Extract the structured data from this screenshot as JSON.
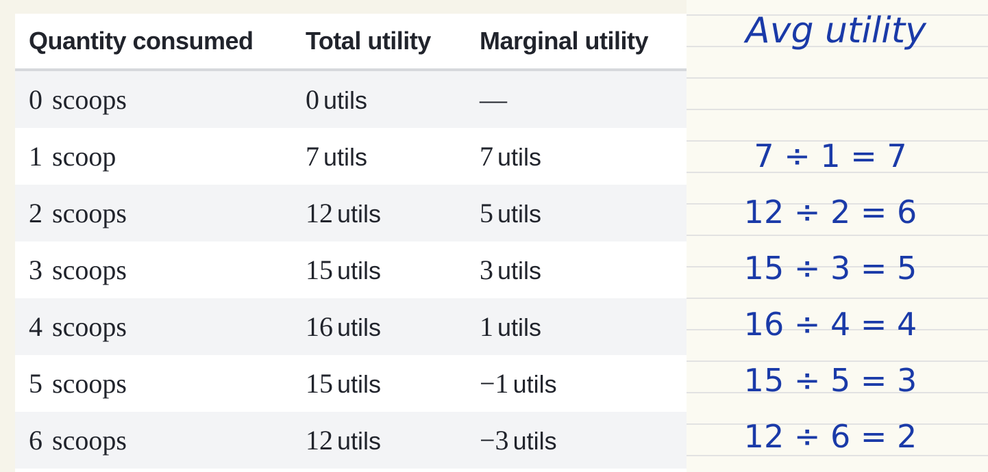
{
  "table": {
    "headers": [
      "Quantity consumed",
      "Total utility",
      "Marginal utility"
    ],
    "rows": [
      {
        "qty": "0",
        "qty_unit": "scoops",
        "total": "0",
        "total_unit": "utils",
        "marginal": "—",
        "marginal_unit": ""
      },
      {
        "qty": "1",
        "qty_unit": "scoop",
        "total": "7",
        "total_unit": "utils",
        "marginal": "7",
        "marginal_unit": "utils"
      },
      {
        "qty": "2",
        "qty_unit": "scoops",
        "total": "12",
        "total_unit": "utils",
        "marginal": "5",
        "marginal_unit": "utils"
      },
      {
        "qty": "3",
        "qty_unit": "scoops",
        "total": "15",
        "total_unit": "utils",
        "marginal": "3",
        "marginal_unit": "utils"
      },
      {
        "qty": "4",
        "qty_unit": "scoops",
        "total": "16",
        "total_unit": "utils",
        "marginal": "1",
        "marginal_unit": "utils"
      },
      {
        "qty": "5",
        "qty_unit": "scoops",
        "total": "15",
        "total_unit": "utils",
        "marginal": "−1",
        "marginal_unit": "utils"
      },
      {
        "qty": "6",
        "qty_unit": "scoops",
        "total": "12",
        "total_unit": "utils",
        "marginal": "−3",
        "marginal_unit": "utils"
      }
    ]
  },
  "notes": {
    "title": "Avg utility",
    "lines": [
      "7 ÷ 1 = 7",
      "12 ÷ 2 = 6",
      "15 ÷ 3 = 5",
      "16 ÷ 4 = 4",
      "15 ÷ 5 = 3",
      "12 ÷ 6 = 2"
    ]
  },
  "colors": {
    "ink": "#1a3aa8",
    "text": "#21242c",
    "stripe": "#f3f4f6",
    "header_rule": "#d6d8dc",
    "paper": "#fbfaf2",
    "ruled_line": "#e2e2e2"
  }
}
